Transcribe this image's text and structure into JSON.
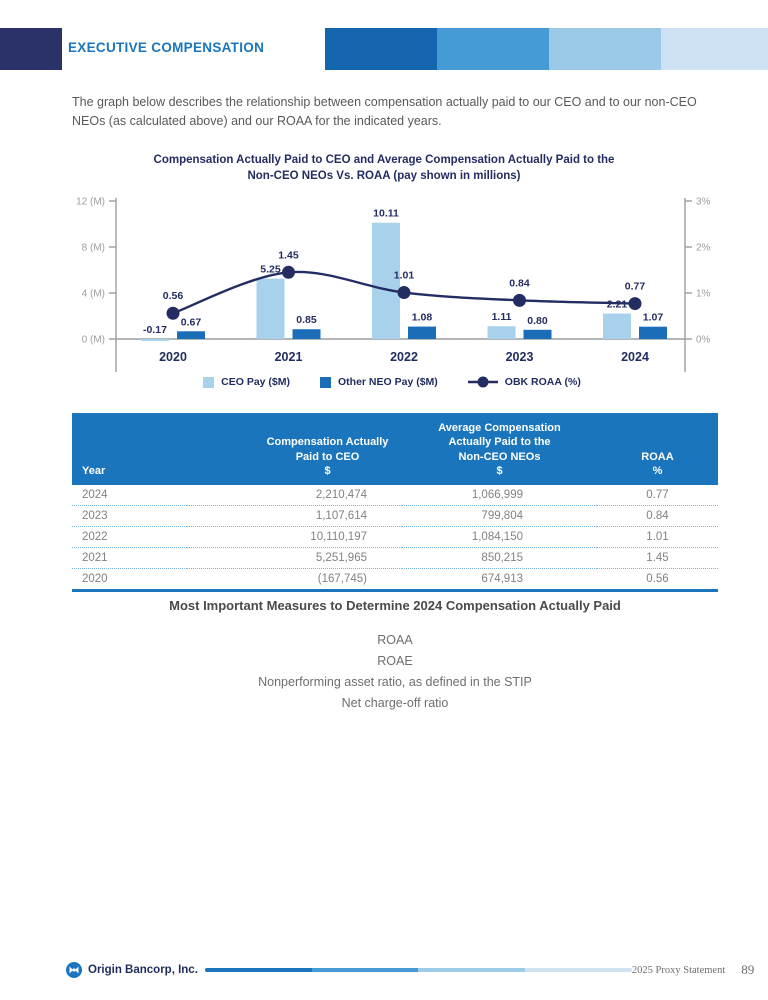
{
  "header": {
    "title": "EXECUTIVE COMPENSATION",
    "navy_block_color": "#2b3169",
    "title_color": "#1b75bc",
    "banner_colors": [
      "#1465ae",
      "#449bd5",
      "#9ac9e8",
      "#cfe2f4"
    ]
  },
  "intro": {
    "text": "The graph below describes the relationship between compensation actually paid to our CEO and to our non-CEO NEOs (as calculated above) and our ROAA for the indicated years."
  },
  "chart": {
    "title": "Compensation Actually Paid to CEO and Average Compensation Actually Paid to the\nNon-CEO NEOs Vs. ROAA (pay shown in millions)",
    "colors": {
      "ceo_bar": "#a8d1ec",
      "neo_bar": "#1b6db7",
      "roaa_line": "#242d62",
      "axis": "#9b9da1",
      "label": "#242d62",
      "year_label": "#1f2d5e"
    }
  },
  "chart_data": {
    "type": "bar",
    "subtype": "grouped-bar-with-line",
    "title": "Compensation Actually Paid to CEO and Average Compensation Actually Paid to the Non-CEO NEOs Vs. ROAA (pay shown in millions)",
    "categories": [
      "2020",
      "2021",
      "2022",
      "2023",
      "2024"
    ],
    "series": [
      {
        "name": "CEO Pay ($M)",
        "type": "bar",
        "color": "#a8d1ec",
        "values": [
          -0.17,
          5.25,
          10.11,
          1.11,
          2.21
        ]
      },
      {
        "name": "Other NEO Pay ($M)",
        "type": "bar",
        "color": "#1b6db7",
        "values": [
          0.67,
          0.85,
          1.08,
          0.8,
          1.07
        ]
      },
      {
        "name": "OBK ROAA (%)",
        "type": "line",
        "axis": "right",
        "color": "#242d62",
        "values": [
          0.56,
          1.45,
          1.01,
          0.84,
          0.77
        ]
      }
    ],
    "left_axis": {
      "label_suffix": " (M)",
      "ticks": [
        0,
        4,
        8,
        12
      ],
      "range": [
        0,
        12
      ]
    },
    "right_axis": {
      "label_suffix": "%",
      "ticks": [
        0,
        1,
        2,
        3
      ],
      "range": [
        0,
        3
      ]
    },
    "grid": false,
    "legend_position": "bottom"
  },
  "table": {
    "headers": [
      "Year",
      "Compensation Actually\nPaid to CEO\n$",
      "Average Compensation\nActually Paid to the\nNon-CEO NEOs\n$",
      "ROAA\n%"
    ],
    "rows": [
      [
        "2024",
        "2,210,474",
        "1,066,999",
        "0.77"
      ],
      [
        "2023",
        "1,107,614",
        "799,804",
        "0.84"
      ],
      [
        "2022",
        "10,110,197",
        "1,084,150",
        "1.01"
      ],
      [
        "2021",
        "5,251,965",
        "850,215",
        "1.45"
      ],
      [
        "2020",
        "(167,745)",
        "674,913",
        "0.56"
      ]
    ],
    "header_bg": "#1b75bc"
  },
  "measures": {
    "heading": "Most Important Measures to Determine 2024 Compensation Actually Paid",
    "items": [
      "ROAA",
      "ROAE",
      "Nonperforming asset ratio, as defined in the STIP",
      "Net charge-off ratio"
    ]
  },
  "footer": {
    "company": "Origin Bancorp, Inc.",
    "doc_title": "2025 Proxy Statement",
    "page_number": "89",
    "logo_color": "#1b75bc",
    "bar_colors": [
      "#1b75bc",
      "#449bd5",
      "#9ecde9",
      "#cfe3f3"
    ]
  }
}
